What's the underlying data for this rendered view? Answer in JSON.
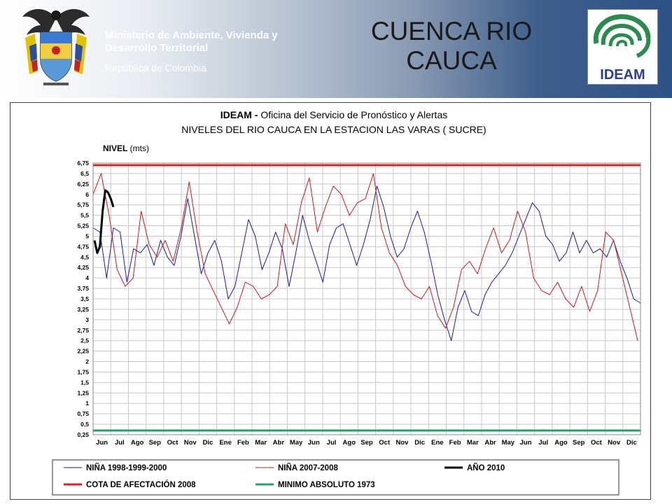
{
  "header": {
    "ministry": "Ministerio de Ambiente, Vivienda y Desarrollo Territorial",
    "republic": "República de Colombia",
    "title": "CUENCA  RIO\nCAUCA",
    "logo_text": "IDEAM",
    "colors": {
      "band_start": "#ffffff",
      "band_end": "#2f5286",
      "logo_green": "#2d8a4e",
      "logo_blue": "#2a3f8f"
    },
    "icons": [
      "colombia-coat-of-arms-icon",
      "ideam-logo-icon"
    ]
  },
  "chart_data": {
    "type": "line",
    "title_bold": "IDEAM - ",
    "title_rest": "Oficina del Servicio de Pronóstico y Alertas",
    "subtitle": "NIVELES DEL RIO CAUCA EN LA ESTACION LAS VARAS ( SUCRE)",
    "ylabel_bold": "NIVEL",
    "ylabel_rest": " (mts)",
    "ylim": [
      0.25,
      6.75
    ],
    "y_ticks": [
      "0,25",
      "0,5",
      "0,75",
      "1",
      "1,25",
      "1,5",
      "1,75",
      "2",
      "2,25",
      "2,5",
      "2,75",
      "3",
      "3,25",
      "3,5",
      "3,75",
      "4",
      "4,25",
      "4,5",
      "4,75",
      "5",
      "5,25",
      "5,5",
      "5,75",
      "6",
      "6,25",
      "6,5",
      "6,75"
    ],
    "x_ticks": [
      "Jun",
      "Jul",
      "Ago",
      "Sep",
      "Oct",
      "Nov",
      "Dic",
      "Ene",
      "Feb",
      "Mar",
      "Abr",
      "May",
      "Jun",
      "Jul",
      "Ago",
      "Sep",
      "Oct",
      "Nov",
      "Dic",
      "Ene",
      "Feb",
      "Mar",
      "Abr",
      "May",
      "Jun",
      "Jul",
      "Ago",
      "Sep",
      "Oct",
      "Nov",
      "Dic"
    ],
    "grid": true,
    "legend_position": "bottom",
    "series": [
      {
        "name": "NIÑA 1998-1999-2000",
        "color": "#1a1aa8",
        "values": [
          5.2,
          5.1,
          4.0,
          5.2,
          5.1,
          3.9,
          4.7,
          4.6,
          4.8,
          4.3,
          4.9,
          4.5,
          4.3,
          5.0,
          5.9,
          5.0,
          4.1,
          4.6,
          4.9,
          4.4,
          3.5,
          3.8,
          4.6,
          5.4,
          5.0,
          4.2,
          4.6,
          5.1,
          4.7,
          3.8,
          4.6,
          5.5,
          4.9,
          4.4,
          3.9,
          4.8,
          5.2,
          5.3,
          4.8,
          4.3,
          4.8,
          5.4,
          6.2,
          5.7,
          5.0,
          4.5,
          4.7,
          5.2,
          5.6,
          5.1,
          4.4,
          3.6,
          3.0,
          2.5,
          3.3,
          3.7,
          3.2,
          3.1,
          3.6,
          3.9,
          4.1,
          4.3,
          4.6,
          5.0,
          5.4,
          5.8,
          5.6,
          5.0,
          4.8,
          4.4,
          4.6,
          5.1,
          4.6,
          4.9,
          4.6,
          4.7,
          4.5,
          4.9,
          4.4,
          4.0,
          3.5,
          3.4
        ]
      },
      {
        "name": "NIÑA 2007-2008",
        "color": "#cc1a1a",
        "values": [
          6.0,
          6.5,
          5.5,
          4.2,
          3.8,
          4.0,
          5.6,
          4.8,
          4.5,
          4.9,
          4.4,
          5.2,
          6.3,
          5.1,
          4.1,
          3.7,
          3.3,
          2.9,
          3.3,
          3.9,
          3.8,
          3.5,
          3.6,
          3.8,
          5.3,
          4.8,
          5.8,
          6.4,
          5.1,
          5.7,
          6.2,
          6.0,
          5.5,
          5.8,
          5.9,
          6.5,
          5.2,
          4.6,
          4.3,
          3.8,
          3.6,
          3.5,
          3.8,
          3.1,
          2.8,
          3.3,
          4.2,
          4.4,
          4.1,
          4.7,
          5.2,
          4.6,
          4.9,
          5.6,
          5.1,
          4.0,
          3.7,
          3.6,
          3.9,
          3.5,
          3.3,
          3.8,
          3.2,
          3.7,
          5.1,
          4.9,
          4.1,
          3.3,
          2.5
        ]
      },
      {
        "name": "AÑO 2010",
        "color": "#000000",
        "values": [
          4.9,
          4.6,
          4.75,
          5.6,
          6.1,
          6.05,
          5.9,
          5.7
        ]
      },
      {
        "name": "COTA DE AFECTACIÓN 2008",
        "color": "#e02020",
        "constant": 6.7
      },
      {
        "name": "MINIMO ABSOLUTO 1973",
        "color": "#2e9e6e",
        "constant": 0.35
      }
    ]
  }
}
